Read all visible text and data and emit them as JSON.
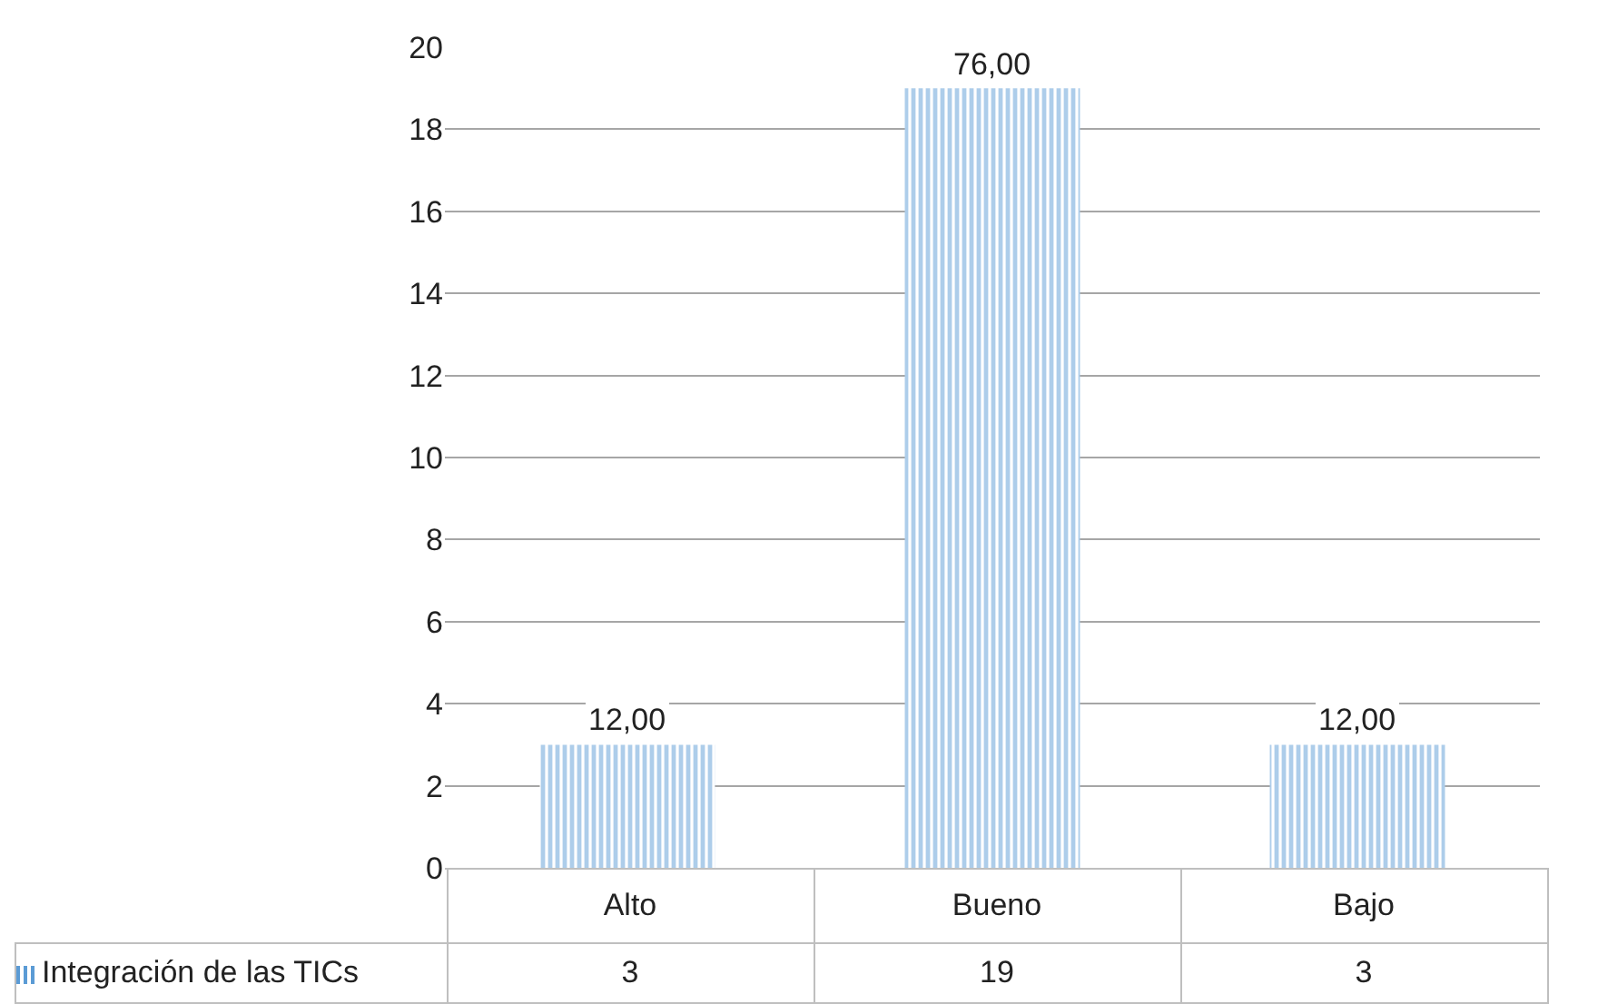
{
  "chart_data": {
    "type": "bar",
    "categories": [
      "Alto",
      "Bueno",
      "Bajo"
    ],
    "series": [
      {
        "name": "Integración de las TICs",
        "color": "#5b9bd5",
        "values": [
          3,
          19,
          3
        ],
        "value_labels": [
          "3",
          "19",
          "3"
        ]
      }
    ],
    "annotations": [
      {
        "text": "12,00",
        "x": "Alto",
        "y": 3
      },
      {
        "text": "76,00",
        "x": "Bueno",
        "y": 19
      },
      {
        "text": "12,00",
        "x": "Bajo",
        "y": 3
      }
    ],
    "ylim": [
      0,
      20
    ],
    "yticks": [
      0,
      2,
      4,
      6,
      8,
      10,
      12,
      14,
      16,
      18,
      20
    ],
    "grid": "y",
    "legend": "bottom"
  }
}
